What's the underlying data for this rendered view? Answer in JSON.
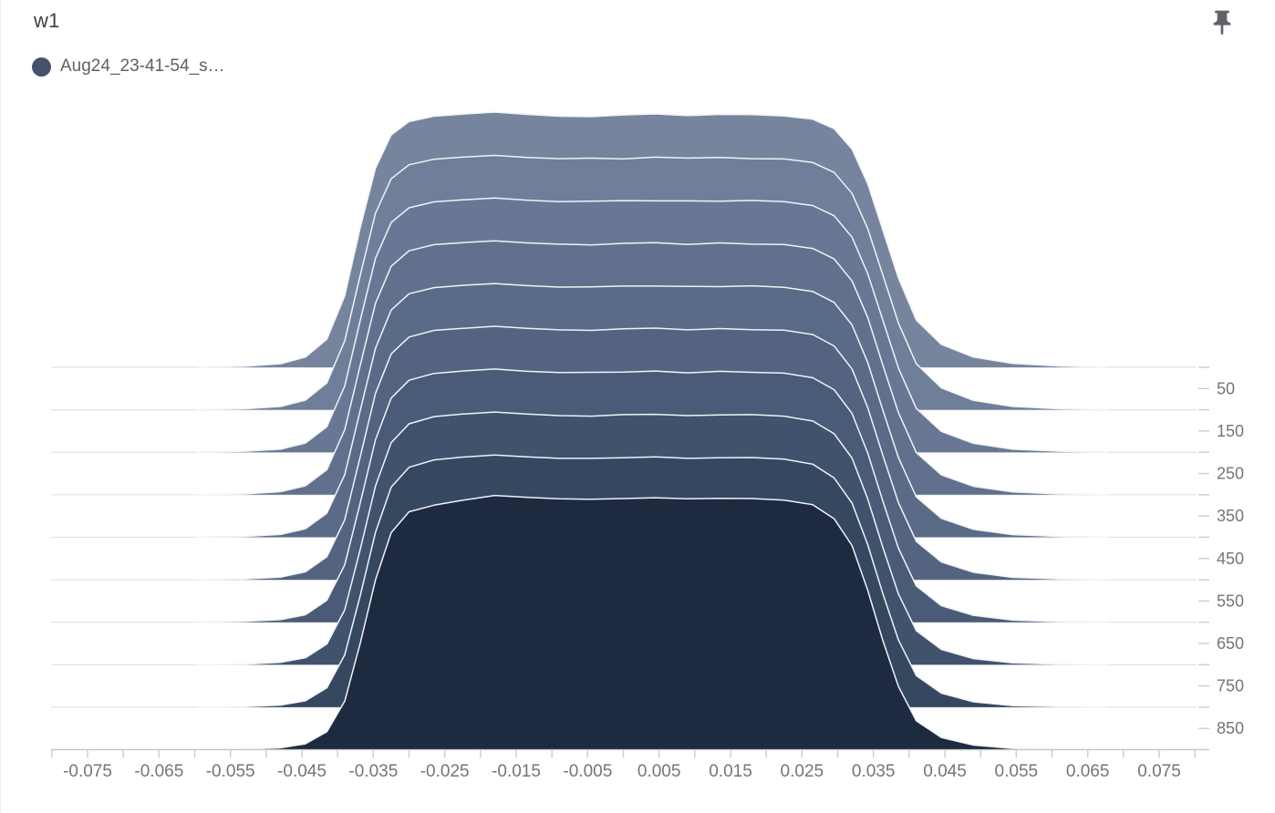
{
  "header": {
    "title": "w1",
    "legend": {
      "label": "Aug24_23-41-54_s…",
      "dot_color": "#44536B"
    }
  },
  "pin": {
    "icon": "push-pin-icon",
    "color": "#5f6368"
  },
  "chart_data": {
    "type": "ridgeline-histogram",
    "title": "w1",
    "run": "Aug24_23-41-54_s…",
    "legend_position": "top-left",
    "grid": true,
    "x_range": [
      -0.08,
      0.08
    ],
    "x_minor_tick_step": 0.005,
    "x_tick_labels": [
      "-0.075",
      "-0.065",
      "-0.055",
      "-0.045",
      "-0.035",
      "-0.025",
      "-0.015",
      "-0.005",
      "0.005",
      "0.015",
      "0.025",
      "0.035",
      "0.045",
      "0.055",
      "0.065",
      "0.075"
    ],
    "y_axis": {
      "unit": "step",
      "min": 0,
      "max": 900,
      "tick_every": 50,
      "tick_labels": [
        "50",
        "150",
        "250",
        "350",
        "450",
        "550",
        "650",
        "750",
        "850"
      ]
    },
    "grid_steps": [
      0,
      100,
      200,
      300,
      400,
      500,
      600,
      700,
      800,
      900
    ],
    "bin_centers": [
      -0.06,
      -0.053,
      -0.048,
      -0.0445,
      -0.0415,
      -0.039,
      -0.0368,
      -0.0347,
      -0.0325,
      -0.03,
      -0.0265,
      -0.0225,
      -0.018,
      -0.0135,
      -0.009,
      -0.0045,
      0.0,
      0.0045,
      0.009,
      0.0135,
      0.018,
      0.0225,
      0.0265,
      0.0295,
      0.032,
      0.0342,
      0.0363,
      0.0385,
      0.041,
      0.0445,
      0.049,
      0.0545,
      0.061,
      0.068
    ],
    "series": [
      {
        "step": 0,
        "color": "#76849E",
        "heights": [
          0,
          0.004,
          0.014,
          0.04,
          0.11,
          0.28,
          0.55,
          0.78,
          0.91,
          0.963,
          0.984,
          0.992,
          1.0,
          0.991,
          0.984,
          0.982,
          0.989,
          0.993,
          0.986,
          0.991,
          0.99,
          0.985,
          0.972,
          0.935,
          0.855,
          0.72,
          0.54,
          0.35,
          0.185,
          0.09,
          0.04,
          0.015,
          0.005,
          0
        ]
      },
      {
        "step": 100,
        "color": "#6F7E99",
        "heights": [
          0,
          0.004,
          0.013,
          0.038,
          0.105,
          0.27,
          0.53,
          0.77,
          0.905,
          0.96,
          0.982,
          0.99,
          0.997,
          0.989,
          0.984,
          0.986,
          0.983,
          0.99,
          0.986,
          0.989,
          0.984,
          0.983,
          0.969,
          0.93,
          0.848,
          0.71,
          0.53,
          0.34,
          0.18,
          0.086,
          0.037,
          0.013,
          0.004,
          0
        ]
      },
      {
        "step": 200,
        "color": "#687894",
        "heights": [
          0,
          0.004,
          0.012,
          0.036,
          0.1,
          0.26,
          0.52,
          0.76,
          0.9,
          0.958,
          0.981,
          0.989,
          0.996,
          0.988,
          0.982,
          0.984,
          0.986,
          0.985,
          0.985,
          0.984,
          0.987,
          0.982,
          0.967,
          0.927,
          0.843,
          0.7,
          0.52,
          0.33,
          0.172,
          0.082,
          0.035,
          0.012,
          0.004,
          0
        ]
      },
      {
        "step": 300,
        "color": "#61718D",
        "heights": [
          0,
          0.003,
          0.012,
          0.035,
          0.098,
          0.255,
          0.51,
          0.75,
          0.895,
          0.956,
          0.98,
          0.988,
          0.995,
          0.987,
          0.982,
          0.979,
          0.985,
          0.988,
          0.981,
          0.987,
          0.982,
          0.981,
          0.965,
          0.924,
          0.838,
          0.695,
          0.51,
          0.322,
          0.165,
          0.078,
          0.033,
          0.011,
          0.003,
          0
        ]
      },
      {
        "step": 400,
        "color": "#5A6B87",
        "heights": [
          0,
          0.003,
          0.011,
          0.033,
          0.094,
          0.245,
          0.5,
          0.74,
          0.89,
          0.954,
          0.978,
          0.987,
          0.994,
          0.986,
          0.98,
          0.981,
          0.984,
          0.984,
          0.983,
          0.982,
          0.985,
          0.979,
          0.963,
          0.92,
          0.832,
          0.685,
          0.5,
          0.312,
          0.158,
          0.074,
          0.031,
          0.01,
          0.003,
          0
        ]
      },
      {
        "step": 500,
        "color": "#536380",
        "heights": [
          0,
          0.003,
          0.01,
          0.031,
          0.09,
          0.235,
          0.485,
          0.73,
          0.885,
          0.951,
          0.977,
          0.985,
          0.993,
          0.985,
          0.979,
          0.977,
          0.983,
          0.986,
          0.979,
          0.984,
          0.98,
          0.978,
          0.961,
          0.916,
          0.826,
          0.675,
          0.49,
          0.302,
          0.15,
          0.07,
          0.029,
          0.009,
          0.003,
          0
        ]
      },
      {
        "step": 600,
        "color": "#4A5B77",
        "heights": [
          0,
          0.003,
          0.01,
          0.029,
          0.086,
          0.225,
          0.47,
          0.715,
          0.878,
          0.948,
          0.975,
          0.984,
          0.992,
          0.983,
          0.978,
          0.979,
          0.98,
          0.984,
          0.977,
          0.983,
          0.979,
          0.976,
          0.958,
          0.911,
          0.818,
          0.663,
          0.477,
          0.29,
          0.142,
          0.065,
          0.027,
          0.008,
          0.002,
          0
        ]
      },
      {
        "step": 700,
        "color": "#41526D",
        "heights": [
          0,
          0.002,
          0.009,
          0.027,
          0.081,
          0.215,
          0.455,
          0.7,
          0.87,
          0.944,
          0.972,
          0.982,
          0.99,
          0.982,
          0.976,
          0.974,
          0.98,
          0.981,
          0.976,
          0.979,
          0.98,
          0.974,
          0.955,
          0.905,
          0.81,
          0.65,
          0.462,
          0.277,
          0.133,
          0.06,
          0.024,
          0.007,
          0.002,
          0
        ]
      },
      {
        "step": 800,
        "color": "#364760",
        "heights": [
          0,
          0.002,
          0.008,
          0.025,
          0.076,
          0.205,
          0.44,
          0.685,
          0.862,
          0.94,
          0.969,
          0.98,
          0.988,
          0.981,
          0.975,
          0.975,
          0.977,
          0.981,
          0.975,
          0.977,
          0.978,
          0.972,
          0.952,
          0.898,
          0.8,
          0.637,
          0.447,
          0.263,
          0.124,
          0.055,
          0.021,
          0.006,
          0.002,
          0
        ]
      },
      {
        "step": 900,
        "color": "#1E2A40",
        "heights": [
          0,
          0.002,
          0.007,
          0.023,
          0.07,
          0.19,
          0.42,
          0.665,
          0.85,
          0.932,
          0.958,
          0.977,
          0.996,
          0.989,
          0.983,
          0.981,
          0.984,
          0.987,
          0.983,
          0.985,
          0.984,
          0.978,
          0.96,
          0.905,
          0.8,
          0.625,
          0.43,
          0.248,
          0.113,
          0.048,
          0.018,
          0.005,
          0.001,
          0
        ]
      }
    ],
    "style": {
      "outline_color": "#EFF3F7",
      "grid_color": "#E0E0E0",
      "axis_color": "#C4C4C4",
      "tick_color": "#CCCCCC",
      "label_color": "#757575"
    }
  }
}
